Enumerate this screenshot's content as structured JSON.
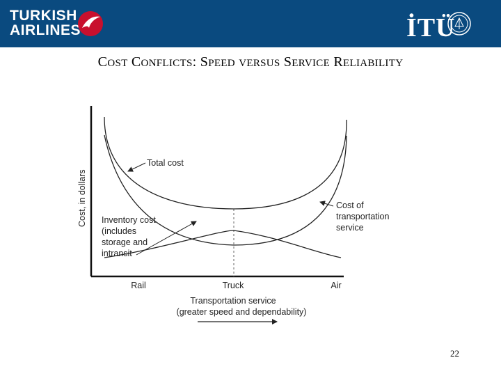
{
  "header": {
    "brand_line1": "TURKISH",
    "brand_line2": "AIRLINES",
    "university": "İTÜ",
    "colors": {
      "bar": "#0a4a7f",
      "brand_red": "#c8102e"
    }
  },
  "title": {
    "part1_cap": "C",
    "part1_rest": "OST",
    "part2_cap": "C",
    "part2_rest": "ONFLICTS",
    "colon": ":",
    "part3_cap": "S",
    "part3_rest": "PEED",
    "part4": "VERSUS",
    "part5_cap": "S",
    "part5_rest": "ERVICE",
    "part6_cap": "R",
    "part6_rest": "ELIABILITY"
  },
  "diagram": {
    "y_axis_label": "Cost, in dollars",
    "x_ticks": [
      "Rail",
      "Truck",
      "Air"
    ],
    "x_axis_label_line1": "Transportation service",
    "x_axis_label_line2": "(greater speed and dependability)",
    "callouts": {
      "total_cost": "Total cost",
      "inventory_line1": "Inventory cost",
      "inventory_line2": "(includes",
      "inventory_line3": "storage and",
      "inventory_line4": "intransit",
      "transport_line1": "Cost of",
      "transport_line2": "transportation",
      "transport_line3": "service"
    }
  },
  "page_number": "22"
}
